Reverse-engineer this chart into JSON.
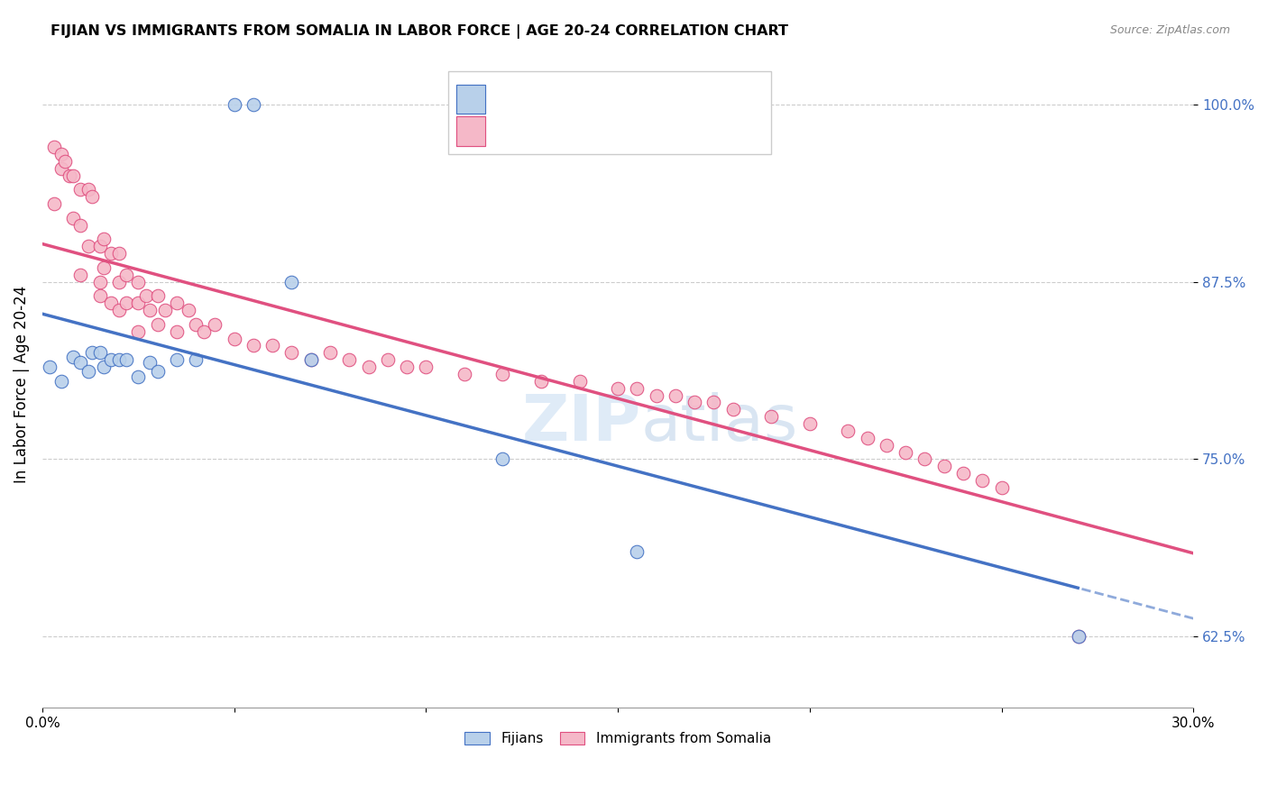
{
  "title": "FIJIAN VS IMMIGRANTS FROM SOMALIA IN LABOR FORCE | AGE 20-24 CORRELATION CHART",
  "source": "Source: ZipAtlas.com",
  "ylabel": "In Labor Force | Age 20-24",
  "xmin": 0.0,
  "xmax": 0.3,
  "ymin": 0.575,
  "ymax": 1.03,
  "yticks": [
    0.625,
    0.75,
    0.875,
    1.0
  ],
  "ytick_labels": [
    "62.5%",
    "75.0%",
    "87.5%",
    "100.0%"
  ],
  "xticks": [
    0.0,
    0.05,
    0.1,
    0.15,
    0.2,
    0.25,
    0.3
  ],
  "xtick_labels": [
    "0.0%",
    "",
    "",
    "",
    "",
    "",
    "30.0%"
  ],
  "fijian_color": "#b8d0ea",
  "somalia_color": "#f5b8c8",
  "fijian_line_color": "#4472c4",
  "somalia_line_color": "#e05080",
  "watermark_color": "#c8dff5",
  "fijian_x": [
    0.002,
    0.005,
    0.008,
    0.01,
    0.012,
    0.013,
    0.015,
    0.016,
    0.018,
    0.02,
    0.022,
    0.025,
    0.028,
    0.03,
    0.035,
    0.04,
    0.05,
    0.055,
    0.065,
    0.07,
    0.12,
    0.155,
    0.27
  ],
  "fijian_y": [
    0.815,
    0.805,
    0.822,
    0.818,
    0.812,
    0.825,
    0.825,
    0.815,
    0.82,
    0.82,
    0.82,
    0.808,
    0.818,
    0.812,
    0.82,
    0.82,
    1.0,
    1.0,
    0.875,
    0.82,
    0.75,
    0.685,
    0.625
  ],
  "somalia_x": [
    0.003,
    0.003,
    0.005,
    0.005,
    0.006,
    0.007,
    0.008,
    0.008,
    0.01,
    0.01,
    0.01,
    0.012,
    0.012,
    0.013,
    0.015,
    0.015,
    0.015,
    0.016,
    0.016,
    0.018,
    0.018,
    0.02,
    0.02,
    0.02,
    0.022,
    0.022,
    0.025,
    0.025,
    0.025,
    0.027,
    0.028,
    0.03,
    0.03,
    0.032,
    0.035,
    0.035,
    0.038,
    0.04,
    0.042,
    0.045,
    0.05,
    0.055,
    0.06,
    0.065,
    0.07,
    0.075,
    0.08,
    0.085,
    0.09,
    0.095,
    0.1,
    0.11,
    0.12,
    0.13,
    0.14,
    0.15,
    0.155,
    0.16,
    0.165,
    0.17,
    0.175,
    0.18,
    0.19,
    0.2,
    0.21,
    0.215,
    0.22,
    0.225,
    0.23,
    0.235,
    0.24,
    0.245,
    0.25,
    0.27
  ],
  "somalia_y": [
    0.97,
    0.93,
    0.965,
    0.955,
    0.96,
    0.95,
    0.95,
    0.92,
    0.94,
    0.915,
    0.88,
    0.94,
    0.9,
    0.935,
    0.9,
    0.875,
    0.865,
    0.905,
    0.885,
    0.895,
    0.86,
    0.895,
    0.875,
    0.855,
    0.88,
    0.86,
    0.875,
    0.86,
    0.84,
    0.865,
    0.855,
    0.865,
    0.845,
    0.855,
    0.86,
    0.84,
    0.855,
    0.845,
    0.84,
    0.845,
    0.835,
    0.83,
    0.83,
    0.825,
    0.82,
    0.825,
    0.82,
    0.815,
    0.82,
    0.815,
    0.815,
    0.81,
    0.81,
    0.805,
    0.805,
    0.8,
    0.8,
    0.795,
    0.795,
    0.79,
    0.79,
    0.785,
    0.78,
    0.775,
    0.77,
    0.765,
    0.76,
    0.755,
    0.75,
    0.745,
    0.74,
    0.735,
    0.73,
    0.625
  ]
}
